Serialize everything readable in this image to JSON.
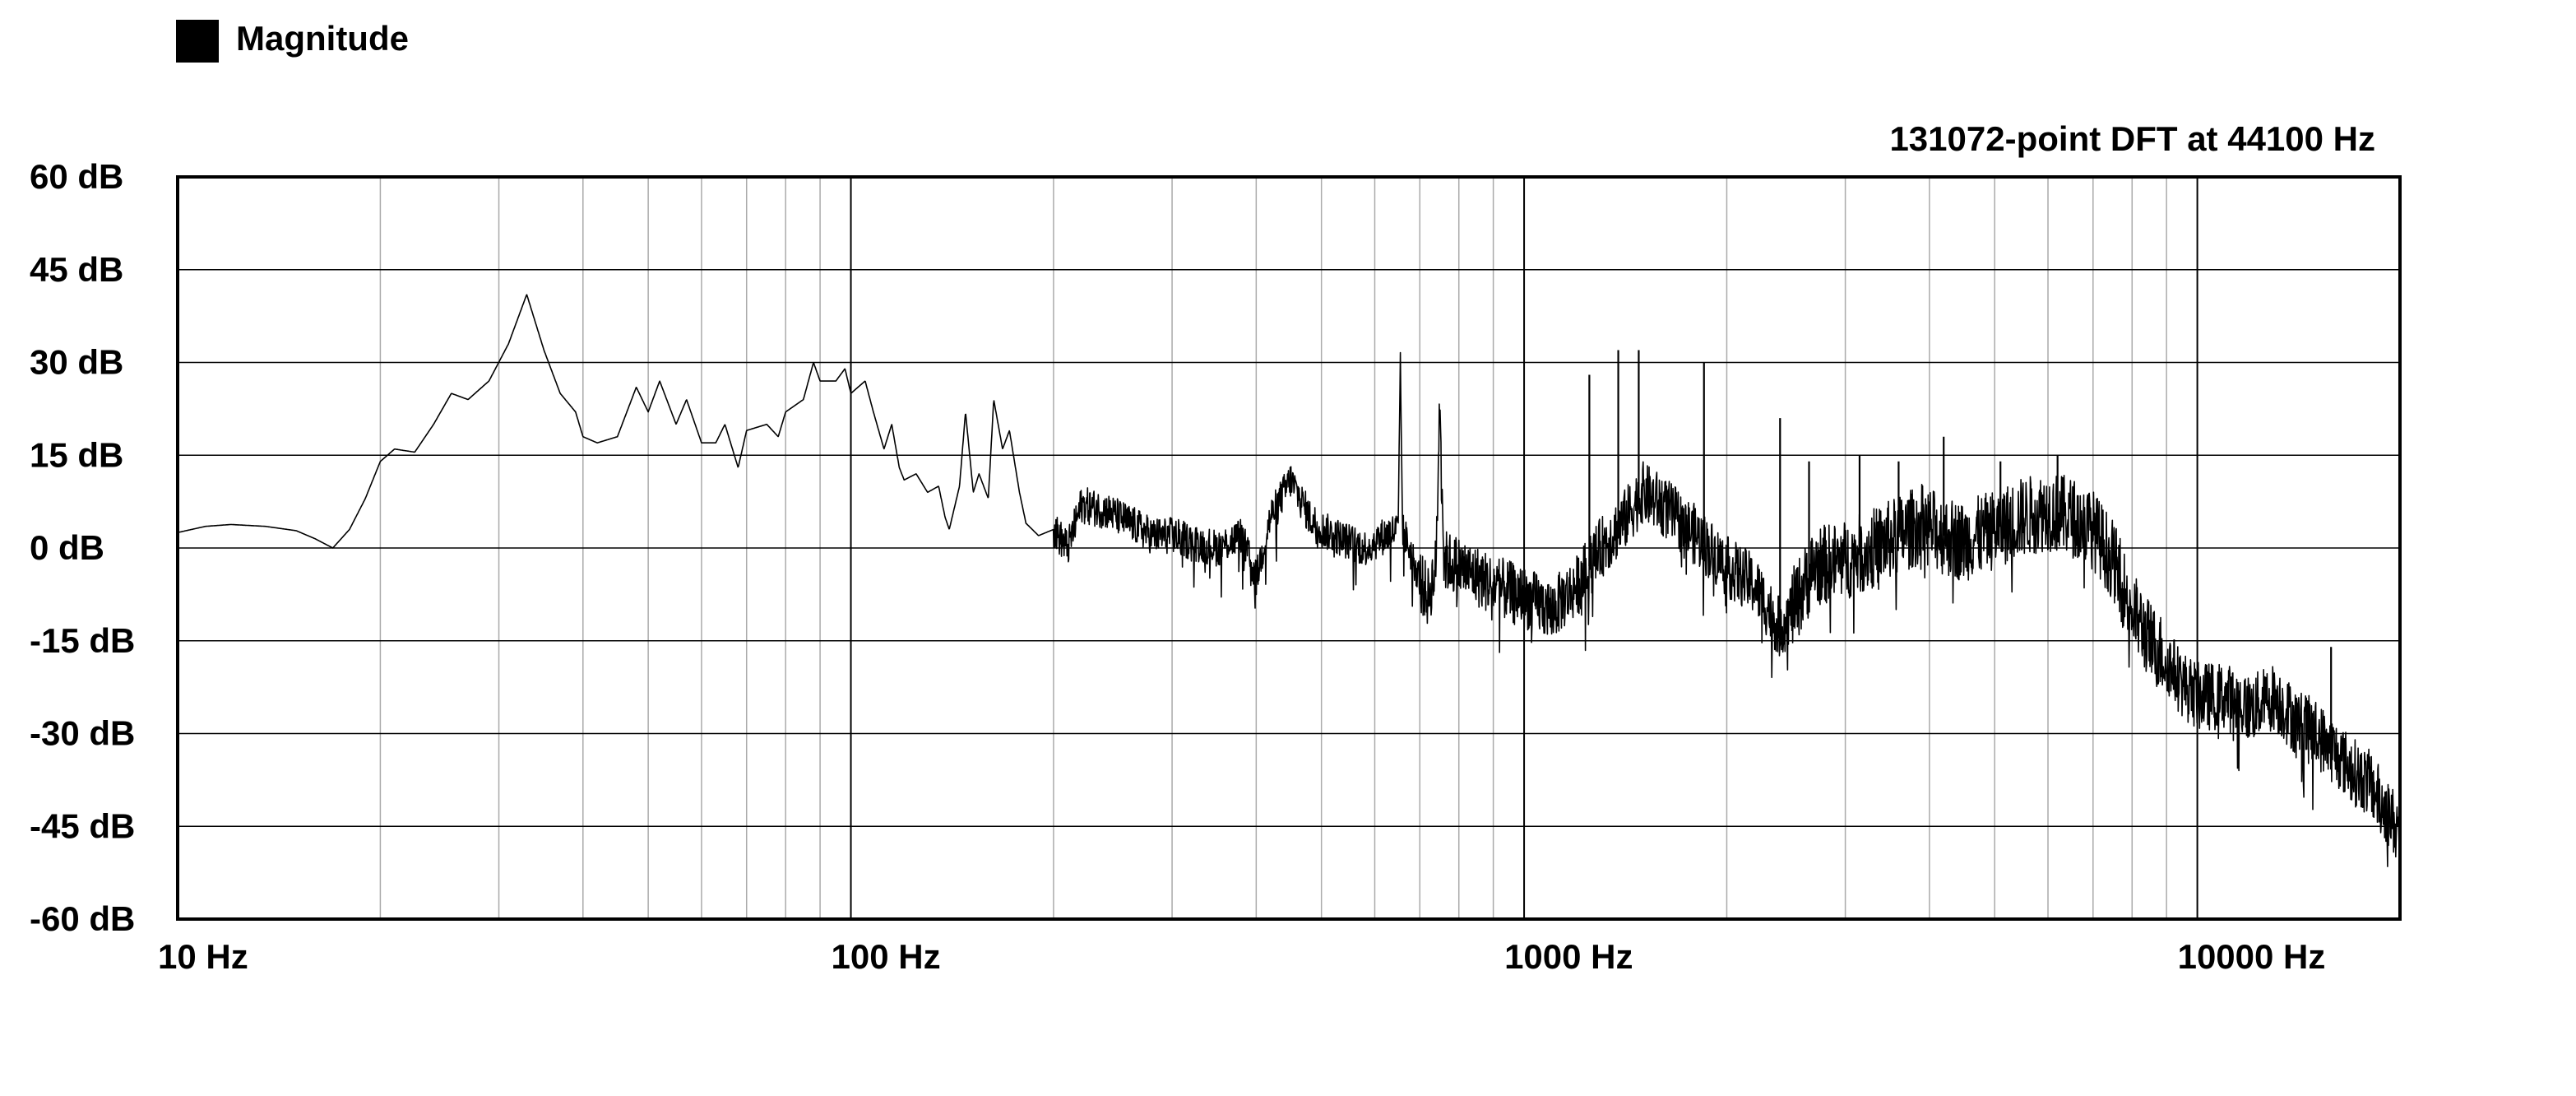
{
  "chart_data": {
    "type": "line",
    "title": "131072-point DFT at 44100 Hz",
    "xscale": "log",
    "xlim": [
      10,
      20000
    ],
    "ylim": [
      -60,
      60
    ],
    "grid": true,
    "legend_placement": "top-left",
    "colors": {
      "line": "#000000",
      "grid_major": "#000000",
      "grid_minor": "#aaaaaa",
      "legend_swatch": "#000000"
    },
    "x_ticks": [
      {
        "value": 10,
        "label": "10 Hz"
      },
      {
        "value": 100,
        "label": "100 Hz"
      },
      {
        "value": 1000,
        "label": "1000 Hz"
      },
      {
        "value": 10000,
        "label": "10000 Hz"
      }
    ],
    "y_ticks": [
      {
        "value": 60,
        "label": "60 dB"
      },
      {
        "value": 45,
        "label": "45 dB"
      },
      {
        "value": 30,
        "label": "30 dB"
      },
      {
        "value": 15,
        "label": "15 dB"
      },
      {
        "value": 0,
        "label": "0 dB"
      },
      {
        "value": -15,
        "label": "-15 dB"
      },
      {
        "value": -30,
        "label": "-30 dB"
      },
      {
        "value": -45,
        "label": "-45 dB"
      },
      {
        "value": -60,
        "label": "-60 dB"
      }
    ],
    "series": [
      {
        "name": "Magnitude",
        "points": [
          [
            10,
            2.5
          ],
          [
            11,
            3.5
          ],
          [
            12,
            3.8
          ],
          [
            13.5,
            3.5
          ],
          [
            15,
            2.8
          ],
          [
            16,
            1.5
          ],
          [
            17,
            0
          ],
          [
            18,
            3
          ],
          [
            19,
            8
          ],
          [
            20,
            14
          ],
          [
            21,
            16
          ],
          [
            22.5,
            15.5
          ],
          [
            24,
            20
          ],
          [
            25.5,
            25
          ],
          [
            27,
            24
          ],
          [
            29,
            27
          ],
          [
            31,
            33
          ],
          [
            33,
            41
          ],
          [
            35,
            32
          ],
          [
            37,
            25
          ],
          [
            39,
            22
          ],
          [
            40,
            18
          ],
          [
            42,
            17
          ],
          [
            45,
            18
          ],
          [
            48,
            26
          ],
          [
            50,
            22
          ],
          [
            52,
            27
          ],
          [
            55,
            20
          ],
          [
            57,
            24
          ],
          [
            60,
            17
          ],
          [
            63,
            17
          ],
          [
            65,
            20
          ],
          [
            68,
            13
          ],
          [
            70,
            19
          ],
          [
            75,
            20
          ],
          [
            78,
            18
          ],
          [
            80,
            22
          ],
          [
            85,
            24
          ],
          [
            88,
            30
          ],
          [
            90,
            27
          ],
          [
            95,
            27
          ],
          [
            98,
            29
          ],
          [
            100,
            25
          ],
          [
            105,
            27
          ],
          [
            108,
            22
          ],
          [
            112,
            16
          ],
          [
            115,
            20
          ],
          [
            118,
            13
          ],
          [
            120,
            11
          ],
          [
            125,
            12
          ],
          [
            130,
            9
          ],
          [
            135,
            10
          ],
          [
            138,
            5
          ],
          [
            140,
            3
          ],
          [
            145,
            10
          ],
          [
            148,
            22
          ],
          [
            152,
            9
          ],
          [
            155,
            12
          ],
          [
            160,
            8
          ],
          [
            163,
            24
          ],
          [
            168,
            16
          ],
          [
            172,
            19
          ],
          [
            178,
            9
          ],
          [
            182,
            4
          ],
          [
            190,
            2
          ],
          [
            200,
            3
          ],
          [
            210,
            0
          ],
          [
            220,
            7
          ],
          [
            240,
            6
          ],
          [
            260,
            4
          ],
          [
            280,
            2
          ],
          [
            300,
            2
          ],
          [
            320,
            1
          ],
          [
            350,
            0
          ],
          [
            380,
            2
          ],
          [
            400,
            -5
          ],
          [
            420,
            5
          ],
          [
            450,
            11
          ],
          [
            480,
            5
          ],
          [
            500,
            3
          ],
          [
            550,
            1
          ],
          [
            580,
            0
          ],
          [
            620,
            2
          ],
          [
            650,
            3
          ],
          [
            655,
            29
          ],
          [
            660,
            3
          ],
          [
            700,
            -5
          ],
          [
            720,
            -8
          ],
          [
            740,
            -3
          ],
          [
            750,
            26
          ],
          [
            760,
            -2
          ],
          [
            800,
            -3
          ],
          [
            900,
            -6
          ],
          [
            1000,
            -8
          ],
          [
            1100,
            -10
          ],
          [
            1200,
            -6
          ],
          [
            1300,
            0
          ],
          [
            1400,
            4
          ],
          [
            1500,
            9
          ],
          [
            1600,
            7
          ],
          [
            1800,
            2
          ],
          [
            2000,
            -3
          ],
          [
            2200,
            -6
          ],
          [
            2400,
            -13
          ],
          [
            2500,
            -10
          ],
          [
            2700,
            -3
          ],
          [
            3000,
            -2
          ],
          [
            3300,
            0
          ],
          [
            3600,
            2
          ],
          [
            3900,
            4
          ],
          [
            4200,
            2
          ],
          [
            4500,
            1
          ],
          [
            5000,
            3
          ],
          [
            5500,
            5
          ],
          [
            6000,
            6
          ],
          [
            6500,
            5
          ],
          [
            7000,
            3
          ],
          [
            7500,
            -2
          ],
          [
            8000,
            -10
          ],
          [
            8500,
            -15
          ],
          [
            9000,
            -18
          ],
          [
            9500,
            -22
          ],
          [
            10000,
            -24
          ],
          [
            11000,
            -24
          ],
          [
            12000,
            -26
          ],
          [
            13000,
            -24
          ],
          [
            14000,
            -28
          ],
          [
            15000,
            -30
          ],
          [
            16000,
            -33
          ],
          [
            17000,
            -36
          ],
          [
            18000,
            -38
          ],
          [
            19000,
            -42
          ],
          [
            20000,
            -46
          ]
        ],
        "peaks": [
          [
            655,
            29
          ],
          [
            750,
            26
          ],
          [
            1250,
            28
          ],
          [
            1380,
            32
          ],
          [
            1480,
            32
          ],
          [
            1850,
            30
          ],
          [
            2400,
            21
          ],
          [
            2650,
            14
          ],
          [
            3150,
            15
          ],
          [
            3600,
            14
          ],
          [
            4200,
            18
          ],
          [
            5100,
            14
          ],
          [
            6200,
            15
          ],
          [
            15800,
            -16
          ]
        ]
      }
    ]
  }
}
